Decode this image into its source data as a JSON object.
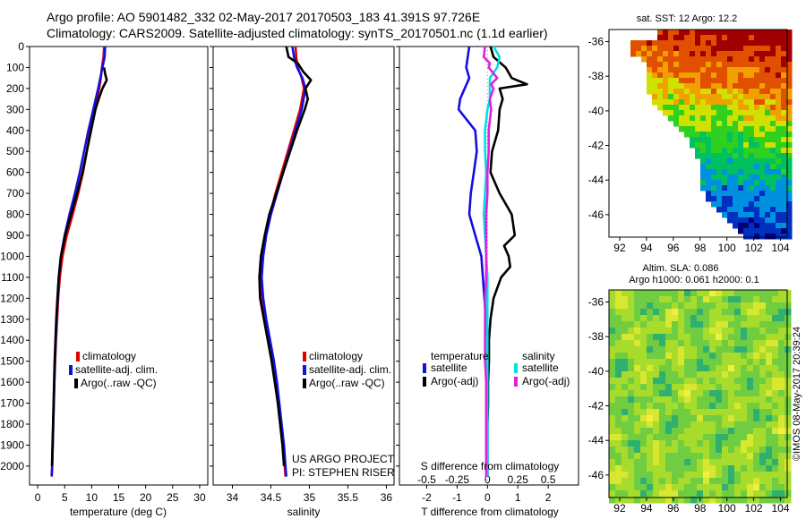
{
  "header": {
    "title_line1": "Argo profile: AO 5901482_332 02-May-2017 20170503_183 41.391S 97.726E",
    "title_line2": "Climatology: CARS2009. Satellite-adjusted climatology: synTS_20170501.nc (1.1d earlier)"
  },
  "credits": {
    "project": "US ARGO PROJECT",
    "pi": "PI: STEPHEN RISER",
    "stamp": "©IMOS 08-May-2017 20:39:24"
  },
  "colors": {
    "climatology": "#e00000",
    "satellite": "#1010e0",
    "argo": "#000000",
    "satellite_salinity": "#00e0e0",
    "argo_salinity": "#e020e0"
  },
  "maps": {
    "sst_title": "sat. SST: 12 Argo: 12.2",
    "sla_title1": "Altim. SLA: 0.086",
    "sla_title2": "Argo h1000: 0.061 h2000: 0.1",
    "lon_ticks": [
      92,
      94,
      96,
      98,
      100,
      102,
      104
    ],
    "lat_ticks": [
      -36,
      -38,
      -40,
      -42,
      -44,
      -46
    ],
    "lon_range": [
      91.2,
      104.5
    ],
    "lat_range": [
      -35.3,
      -47.3
    ]
  },
  "chart_data": [
    {
      "type": "line",
      "id": "temperature",
      "xlabel": "temperature (deg C)",
      "ylabel": "",
      "xlim": [
        -1.5,
        31.5
      ],
      "ylim": [
        2090,
        0
      ],
      "x_ticks": [
        0,
        5,
        10,
        15,
        20,
        25,
        30
      ],
      "y_ticks": [
        0,
        100,
        200,
        300,
        400,
        500,
        600,
        700,
        800,
        900,
        1000,
        1100,
        1200,
        1300,
        1400,
        1500,
        1600,
        1700,
        1800,
        1900,
        2000
      ],
      "legend": [
        "climatology",
        "satellite-adj. clim.",
        "Argo(..raw -QC)"
      ],
      "series": [
        {
          "name": "climatology",
          "color": "#e00000",
          "depth": [
            0,
            50,
            100,
            150,
            200,
            300,
            400,
            500,
            600,
            700,
            800,
            900,
            1000,
            1100,
            1200,
            1300,
            1400,
            1500,
            1600,
            1700,
            1800,
            1900,
            2000,
            2050
          ],
          "values": [
            12.3,
            12.2,
            11.9,
            11.7,
            11.4,
            10.6,
            9.8,
            9.1,
            8.4,
            7.5,
            6.5,
            5.4,
            4.6,
            4.1,
            3.8,
            3.6,
            3.4,
            3.25,
            3.1,
            3.0,
            2.9,
            2.8,
            2.7,
            2.6
          ]
        },
        {
          "name": "satellite-adj. clim.",
          "color": "#1010e0",
          "depth": [
            0,
            50,
            100,
            150,
            200,
            300,
            400,
            500,
            600,
            700,
            800,
            900,
            1000,
            1100,
            1200,
            1300,
            1400,
            1500,
            1600,
            1700,
            1800,
            1900,
            2000,
            2050
          ],
          "values": [
            12.5,
            12.4,
            12.0,
            11.6,
            11.2,
            10.3,
            9.4,
            8.6,
            7.8,
            6.9,
            5.9,
            5.0,
            4.3,
            3.9,
            3.7,
            3.5,
            3.35,
            3.2,
            3.1,
            3.0,
            2.9,
            2.8,
            2.7,
            2.6
          ]
        },
        {
          "name": "Argo(..raw -QC)",
          "color": "#000000",
          "depth": [
            100,
            130,
            160,
            200,
            250,
            300,
            400,
            500,
            600,
            700,
            800,
            900,
            1000,
            1100,
            1200,
            1300,
            1400,
            1500,
            1600,
            1700,
            1800,
            1900,
            2000
          ],
          "values": [
            12.3,
            12.5,
            12.8,
            12.0,
            11.3,
            10.7,
            9.9,
            9.1,
            8.3,
            7.3,
            6.2,
            5.1,
            4.3,
            3.9,
            3.65,
            3.45,
            3.3,
            3.15,
            3.05,
            2.95,
            2.85,
            2.75,
            2.65
          ]
        }
      ]
    },
    {
      "type": "line",
      "id": "salinity",
      "xlabel": "salinity",
      "ylabel": "",
      "xlim": [
        33.75,
        36.1
      ],
      "ylim": [
        2090,
        0
      ],
      "x_ticks": [
        34,
        34.5,
        35,
        35.5,
        36
      ],
      "legend": [
        "climatology",
        "satellite-adj. clim.",
        "Argo(..raw -QC)"
      ],
      "series": [
        {
          "name": "climatology",
          "color": "#e00000",
          "depth": [
            0,
            50,
            100,
            150,
            200,
            300,
            400,
            500,
            600,
            700,
            800,
            900,
            1000,
            1100,
            1200,
            1300,
            1400,
            1500,
            1600,
            1700,
            1800,
            1900,
            2000,
            2050
          ],
          "values": [
            34.82,
            34.83,
            34.85,
            34.9,
            34.93,
            34.88,
            34.8,
            34.72,
            34.64,
            34.56,
            34.49,
            34.43,
            34.39,
            34.37,
            34.39,
            34.43,
            34.48,
            34.53,
            34.57,
            34.6,
            34.63,
            34.66,
            34.68,
            34.69
          ]
        },
        {
          "name": "satellite-adj. clim.",
          "color": "#1010e0",
          "depth": [
            0,
            50,
            100,
            150,
            200,
            300,
            400,
            500,
            600,
            700,
            800,
            900,
            1000,
            1100,
            1200,
            1300,
            1400,
            1500,
            1600,
            1700,
            1800,
            1900,
            2000,
            2050
          ],
          "values": [
            34.78,
            34.8,
            34.84,
            34.91,
            34.95,
            34.9,
            34.82,
            34.74,
            34.66,
            34.58,
            34.5,
            34.44,
            34.4,
            34.38,
            34.4,
            34.44,
            34.49,
            34.54,
            34.58,
            34.61,
            34.64,
            34.67,
            34.69,
            34.7
          ]
        },
        {
          "name": "Argo(..raw -QC)",
          "color": "#000000",
          "depth": [
            0,
            50,
            80,
            120,
            160,
            200,
            250,
            300,
            400,
            500,
            600,
            700,
            800,
            900,
            1000,
            1100,
            1200,
            1300,
            1400,
            1500,
            1600,
            1700,
            1800,
            1900,
            2000
          ],
          "values": [
            34.7,
            34.73,
            34.85,
            34.92,
            35.02,
            34.95,
            34.98,
            34.94,
            34.84,
            34.75,
            34.66,
            34.57,
            34.48,
            34.42,
            34.37,
            34.35,
            34.36,
            34.41,
            34.46,
            34.51,
            34.55,
            34.59,
            34.62,
            34.65,
            34.67
          ]
        }
      ]
    },
    {
      "type": "line",
      "id": "difference",
      "xlabel": "T difference from climatology",
      "xlabel2": "S difference from climatology",
      "ylabel": "",
      "xlim": [
        -2.9,
        3.0
      ],
      "ylim": [
        2090,
        0
      ],
      "x_ticks": [
        -2,
        -1,
        0,
        1,
        2
      ],
      "s_ticks": [
        "-0.5",
        "-0.25",
        "0",
        "0.25",
        "0.5"
      ],
      "s_tick_t_positions": [
        -2,
        -1,
        0,
        1,
        2
      ],
      "legend_headers": [
        "temperature",
        "salinity"
      ],
      "legend": [
        "satellite",
        "Argo(-adj)",
        "satellite",
        "Argo(-adj)"
      ],
      "series": [
        {
          "name": "satellite",
          "variable": "temperature",
          "color": "#1010e0",
          "depth": [
            0,
            50,
            100,
            150,
            200,
            250,
            300,
            400,
            500,
            600,
            700,
            800,
            900,
            1000,
            1100,
            1200,
            1300,
            1400,
            1500,
            1600,
            1700,
            1800,
            1900,
            2000,
            2050
          ],
          "values": [
            -0.6,
            -0.65,
            -0.7,
            -0.6,
            -0.75,
            -0.9,
            -0.95,
            -0.4,
            -0.35,
            -0.45,
            -0.55,
            -0.6,
            -0.4,
            -0.2,
            -0.15,
            -0.1,
            -0.05,
            0,
            0,
            0,
            0,
            0,
            0,
            0,
            0
          ]
        },
        {
          "name": "Argo(-adj)",
          "variable": "temperature",
          "color": "#000000",
          "depth": [
            0,
            50,
            100,
            150,
            180,
            200,
            250,
            300,
            400,
            500,
            600,
            700,
            800,
            900,
            950,
            1000,
            1050,
            1100,
            1200,
            1300,
            1400,
            1500,
            1600,
            1700,
            1800,
            1900,
            2000,
            2050
          ],
          "values": [
            0.1,
            0.2,
            0.6,
            0.8,
            1.3,
            0.4,
            0.5,
            0.4,
            0.35,
            0.15,
            0.1,
            0.4,
            0.8,
            0.9,
            0.55,
            0.7,
            0.75,
            0.45,
            0.2,
            0.1,
            0.05,
            0.05,
            0.02,
            0.02,
            0,
            0,
            0,
            0
          ]
        },
        {
          "name": "satellite",
          "variable": "salinity",
          "color": "#00e0e0",
          "depth": [
            0,
            50,
            100,
            150,
            200,
            250,
            300,
            400,
            500,
            600,
            700,
            800,
            900,
            1000,
            1100,
            1200,
            1300,
            1400,
            1500,
            1600,
            1700,
            1800,
            1900,
            2000,
            2050
          ],
          "values": [
            0.05,
            0.1,
            0.08,
            0.02,
            0.02,
            0.02,
            0.0,
            -0.02,
            -0.02,
            -0.01,
            -0.02,
            -0.03,
            -0.02,
            -0.01,
            0.0,
            0.0,
            0.0,
            0.0,
            0.0,
            0.0,
            0.0,
            0.0,
            0.0,
            0.0,
            0.0
          ]
        },
        {
          "name": "Argo(-adj)",
          "variable": "salinity",
          "color": "#e020e0",
          "depth": [
            0,
            50,
            80,
            100,
            150,
            180,
            200,
            250,
            300,
            400,
            500,
            600,
            700,
            800,
            900,
            1000,
            1100,
            1200,
            1300,
            1400,
            1500,
            1600,
            1700,
            1800,
            1900,
            2000,
            2050
          ],
          "values": [
            -0.02,
            -0.03,
            0.02,
            0.01,
            0.08,
            0.03,
            0.05,
            0.02,
            0.03,
            0.01,
            0.01,
            0.0,
            0.0,
            -0.01,
            -0.01,
            -0.01,
            -0.01,
            -0.02,
            -0.02,
            -0.02,
            -0.02,
            -0.01,
            -0.01,
            -0.01,
            -0.01,
            -0.01,
            -0.01
          ]
        }
      ]
    }
  ]
}
